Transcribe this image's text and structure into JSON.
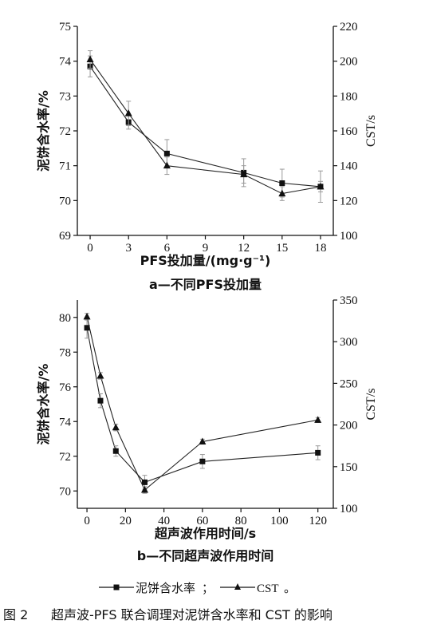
{
  "figure": {
    "legend": {
      "series_a": "泥饼含水率",
      "separator": "；",
      "series_b": "CST",
      "end": "。"
    },
    "caption": {
      "label": "图 2",
      "text": "超声波-PFS 联合调理对泥饼含水率和 CST 的影响"
    }
  },
  "chart_data": [
    {
      "type": "line",
      "subtitle": "a—不同PFS投加量",
      "xlabel": "PFS投加量/(mg·g⁻¹)",
      "ylabel_left": "泥饼含水率/%",
      "ylabel_right": "CST/s",
      "xlim": [
        -1,
        19
      ],
      "xticks": [
        0,
        3,
        6,
        9,
        12,
        15,
        18
      ],
      "ylim_left": [
        69,
        75
      ],
      "yticks_left": [
        69,
        70,
        71,
        72,
        73,
        74,
        75
      ],
      "ylim_right": [
        100,
        220
      ],
      "yticks_right": [
        100,
        120,
        140,
        160,
        180,
        200,
        220
      ],
      "grid": false,
      "legend_position": "bottom",
      "series": [
        {
          "axis": "left",
          "marker": "square",
          "x": [
            0,
            3,
            6,
            12,
            15,
            18
          ],
          "y": [
            73.85,
            72.25,
            71.35,
            70.8,
            70.5,
            70.4
          ],
          "err": [
            0.3,
            0.2,
            0.4,
            0.4,
            0.4,
            0.45
          ]
        },
        {
          "axis": "right",
          "marker": "triangle",
          "x": [
            0,
            3,
            6,
            12,
            15,
            18
          ],
          "y": [
            201,
            170,
            140,
            135,
            124,
            128
          ],
          "err": [
            5,
            7,
            5,
            5,
            4,
            3
          ]
        }
      ]
    },
    {
      "type": "line",
      "subtitle": "b—不同超声波作用时间",
      "xlabel": "超声波作用时间/s",
      "ylabel_left": "泥饼含水率/%",
      "ylabel_right": "CST/s",
      "xlim": [
        -5,
        128
      ],
      "xticks": [
        0,
        20,
        40,
        60,
        80,
        100,
        120
      ],
      "ylim_left": [
        69,
        81
      ],
      "yticks_left": [
        70,
        72,
        74,
        76,
        78,
        80
      ],
      "ylim_right": [
        100,
        350
      ],
      "yticks_right": [
        100,
        150,
        200,
        250,
        300,
        350
      ],
      "grid": false,
      "legend_position": "bottom",
      "series": [
        {
          "axis": "left",
          "marker": "square",
          "x": [
            0,
            7,
            15,
            30,
            60,
            120
          ],
          "y": [
            79.4,
            75.2,
            72.3,
            70.5,
            71.7,
            72.2
          ],
          "err": [
            0.6,
            0.4,
            0.3,
            0.4,
            0.4,
            0.4
          ]
        },
        {
          "axis": "right",
          "marker": "triangle",
          "x": [
            0,
            7,
            15,
            30,
            60,
            120
          ],
          "y": [
            330,
            259,
            197,
            122,
            180,
            206
          ],
          "err": [
            4,
            4,
            4,
            4,
            3,
            3
          ]
        }
      ]
    }
  ]
}
